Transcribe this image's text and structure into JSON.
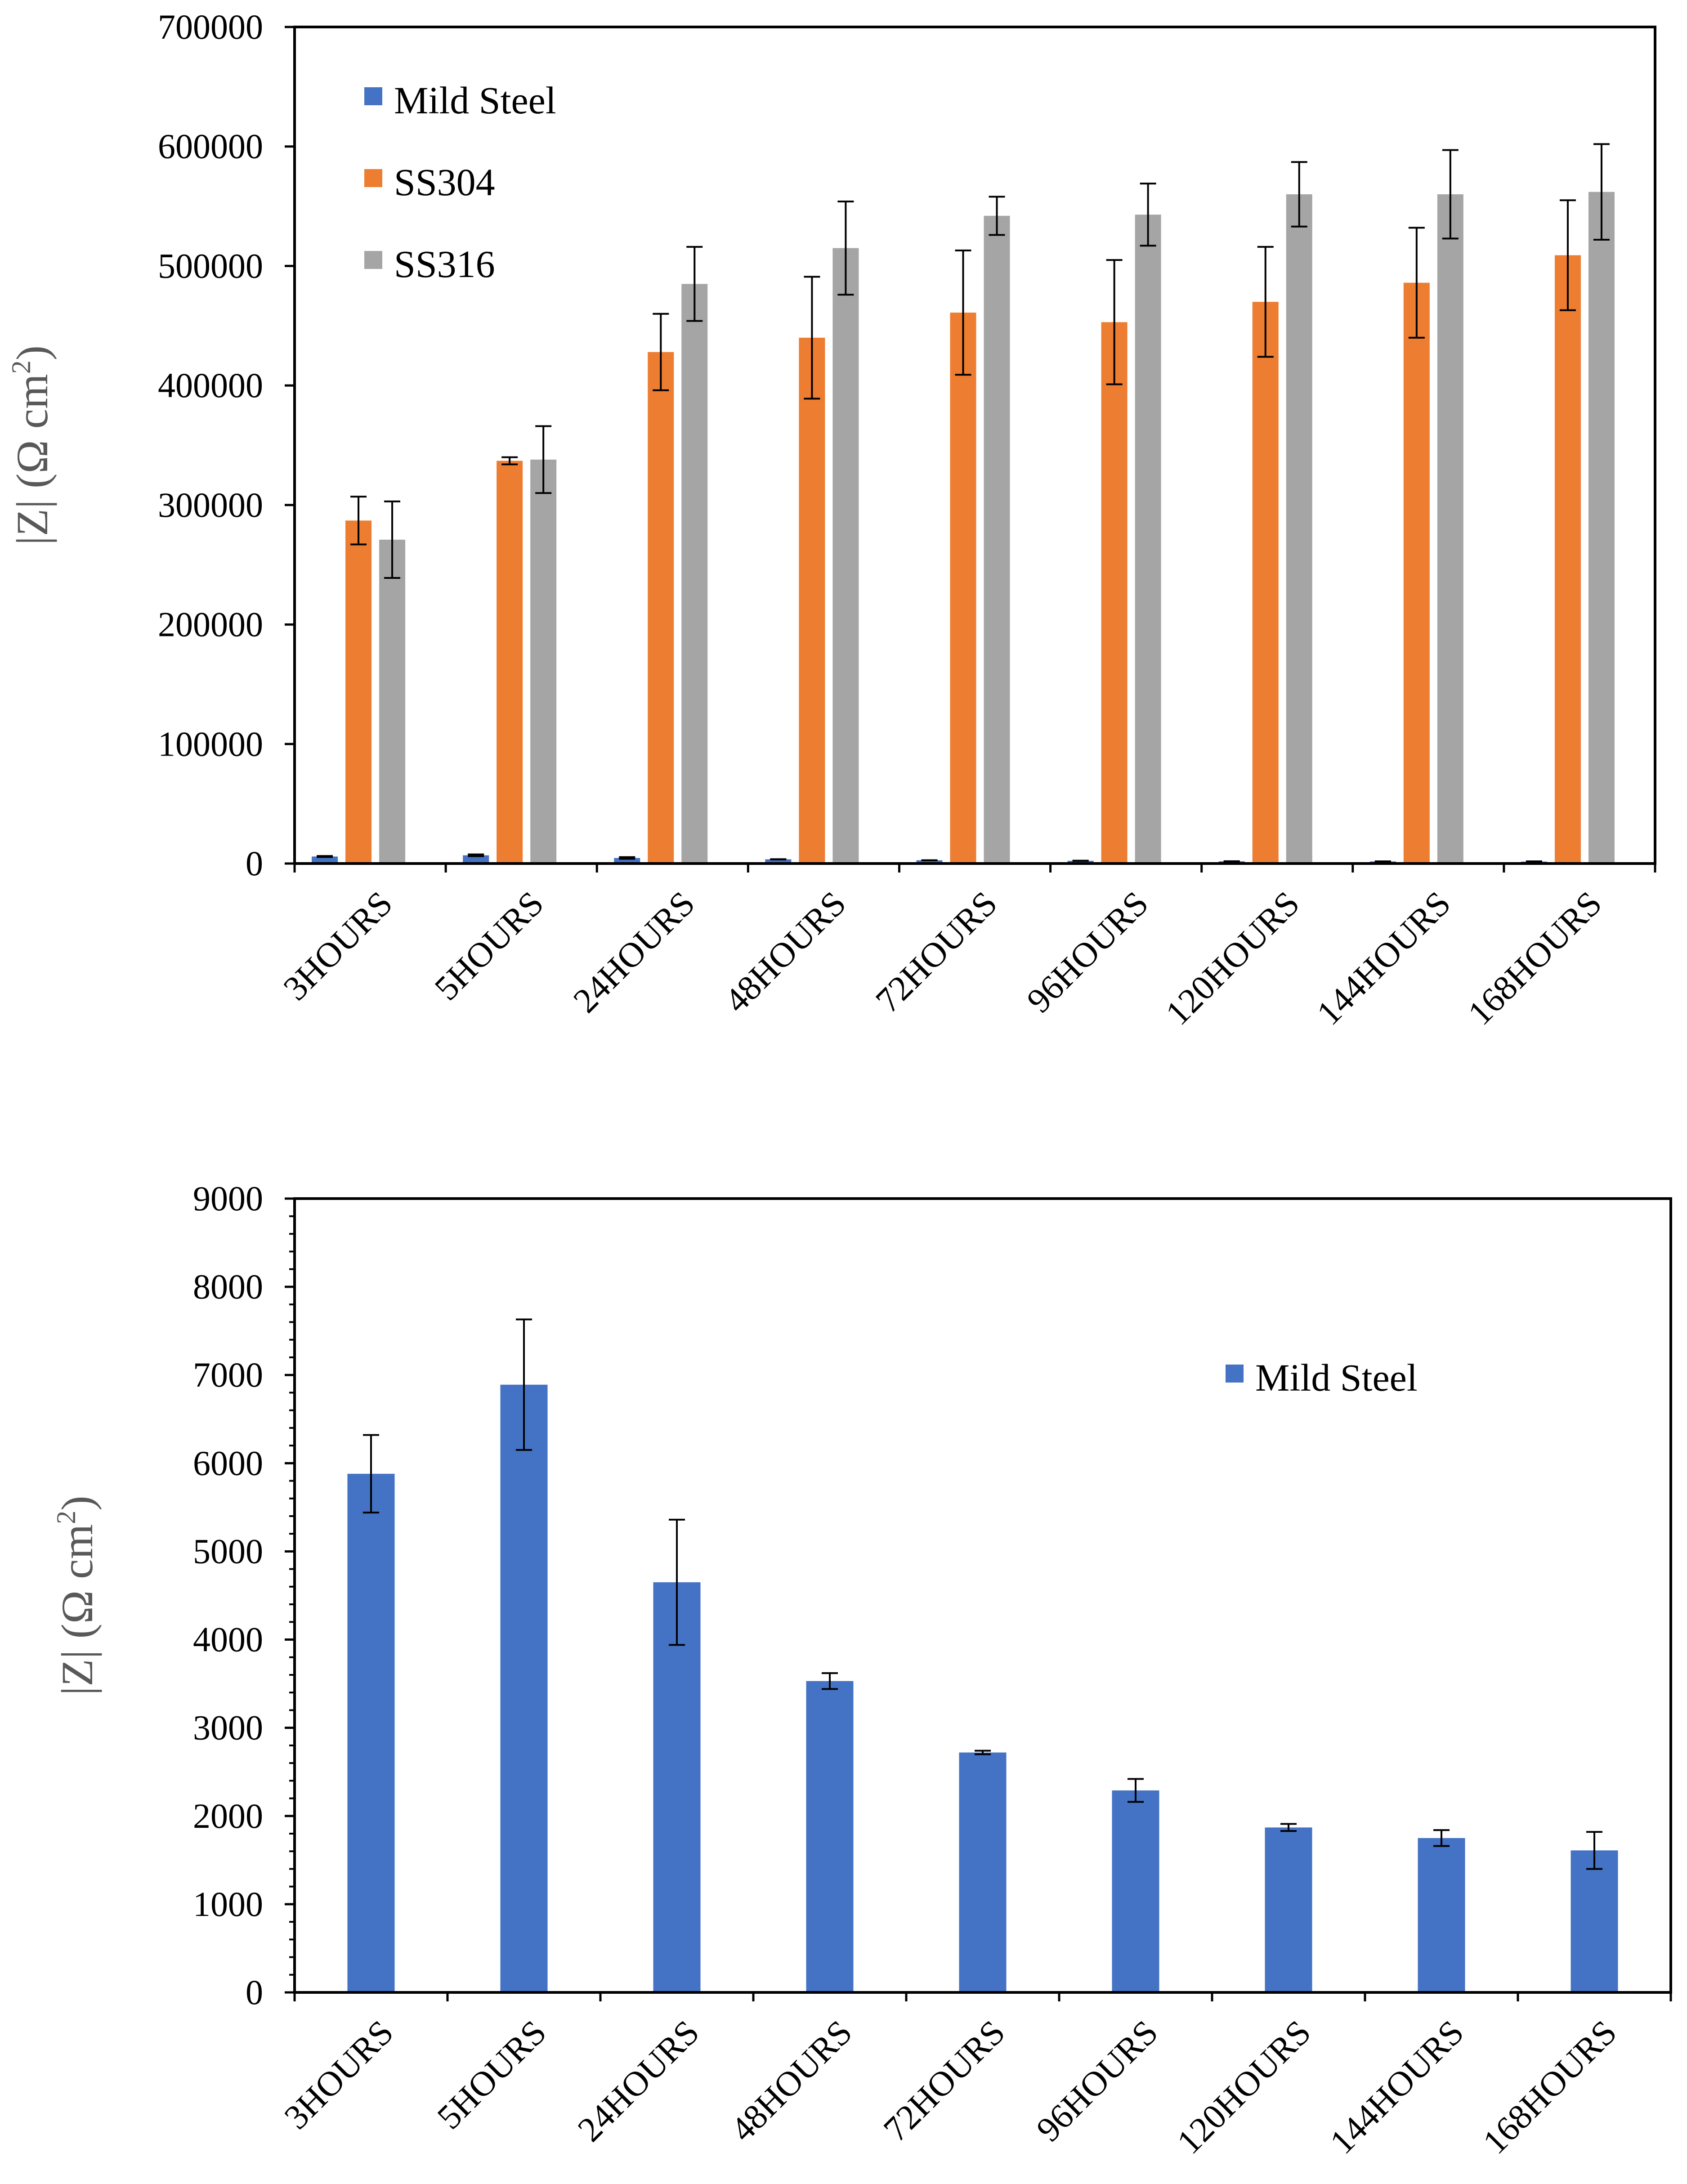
{
  "chart_data": [
    {
      "type": "bar",
      "ylabel": "|Z| (Ω cm²)",
      "ylabel_main": "|Z| (Ω cm",
      "ylabel_sup": "2",
      "ylabel_close": ")",
      "ylim": [
        0,
        700000
      ],
      "yticks": [
        "0",
        "100000",
        "200000",
        "300000",
        "400000",
        "500000",
        "600000",
        "700000"
      ],
      "categories": [
        "3HOURS",
        "5HOURS",
        "24HOURS",
        "48HOURS",
        "72HOURS",
        "96HOURS",
        "120HOURS",
        "144HOURS",
        "168HOURS"
      ],
      "legend_position": "top-left",
      "series": [
        {
          "name": "Mild Steel",
          "color": "#4472c4",
          "values": [
            5880,
            6890,
            4650,
            3530,
            2720,
            2290,
            1870,
            1750,
            1610
          ],
          "errors": [
            440,
            740,
            710,
            90,
            20,
            130,
            40,
            90,
            210
          ]
        },
        {
          "name": "SS304",
          "color": "#ed7d31",
          "values": [
            287000,
            337000,
            428000,
            440000,
            461000,
            453000,
            470000,
            486000,
            509000
          ],
          "errors": [
            20000,
            3000,
            32000,
            51000,
            52000,
            52000,
            46000,
            46000,
            46000
          ]
        },
        {
          "name": "SS316",
          "color": "#a5a5a5",
          "values": [
            271000,
            338000,
            485000,
            515000,
            542000,
            543000,
            560000,
            560000,
            562000
          ],
          "errors": [
            32000,
            28000,
            31000,
            39000,
            16000,
            26000,
            27000,
            37000,
            40000
          ]
        }
      ]
    },
    {
      "type": "bar",
      "ylabel": "|Z| (Ω cm²)",
      "ylabel_main": "|Z| (Ω cm",
      "ylabel_sup": "2",
      "ylabel_close": ")",
      "ylim": [
        0,
        9000
      ],
      "yticks": [
        "0",
        "1000",
        "2000",
        "3000",
        "4000",
        "5000",
        "6000",
        "7000",
        "8000",
        "9000"
      ],
      "categories": [
        "3HOURS",
        "5HOURS",
        "24HOURS",
        "48HOURS",
        "72HOURS",
        "96HOURS",
        "120HOURS",
        "144HOURS",
        "168HOURS"
      ],
      "legend_position": "top-right",
      "series": [
        {
          "name": "Mild Steel",
          "color": "#4472c4",
          "values": [
            5880,
            6890,
            4650,
            3530,
            2720,
            2290,
            1870,
            1750,
            1610
          ],
          "errors": [
            440,
            740,
            710,
            90,
            20,
            130,
            40,
            90,
            210
          ]
        }
      ]
    }
  ]
}
